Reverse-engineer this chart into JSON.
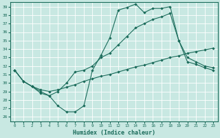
{
  "xlabel": "Humidex (Indice chaleur)",
  "bg_color": "#c8e8e2",
  "grid_color": "#b0d8d0",
  "line_color": "#1a6b5a",
  "xlim": [
    -0.5,
    23.5
  ],
  "ylim": [
    25.5,
    39.5
  ],
  "xticks": [
    0,
    1,
    2,
    3,
    4,
    5,
    6,
    7,
    8,
    9,
    10,
    11,
    12,
    13,
    14,
    15,
    16,
    17,
    18,
    19,
    20,
    21,
    22,
    23
  ],
  "yticks": [
    26,
    27,
    28,
    29,
    30,
    31,
    32,
    33,
    34,
    35,
    36,
    37,
    38,
    39
  ],
  "line1_x": [
    0,
    1,
    2,
    3,
    4,
    5,
    6,
    7,
    8,
    9,
    10,
    11,
    12,
    13,
    14,
    15,
    16,
    17,
    18,
    19,
    20,
    21,
    22,
    23
  ],
  "line1_y": [
    31.5,
    30.2,
    29.6,
    29.0,
    28.5,
    27.3,
    26.6,
    26.6,
    27.3,
    31.5,
    33.3,
    35.3,
    38.6,
    38.9,
    39.3,
    38.3,
    38.8,
    38.8,
    39.0,
    35.0,
    32.5,
    32.2,
    31.8,
    31.5
  ],
  "line2_x": [
    0,
    1,
    2,
    3,
    4,
    5,
    6,
    7,
    8,
    9,
    10,
    11,
    12,
    13,
    14,
    15,
    16,
    17,
    18,
    19,
    20,
    21,
    22,
    23
  ],
  "line2_y": [
    31.5,
    30.2,
    29.6,
    28.8,
    28.5,
    29.0,
    30.0,
    31.3,
    31.5,
    32.0,
    33.0,
    33.5,
    34.5,
    35.5,
    36.5,
    37.0,
    37.5,
    37.8,
    38.2,
    35.0,
    33.0,
    32.5,
    32.0,
    31.8
  ],
  "line3_x": [
    0,
    1,
    2,
    3,
    4,
    5,
    6,
    7,
    8,
    9,
    10,
    11,
    12,
    13,
    14,
    15,
    16,
    17,
    18,
    19,
    20,
    21,
    22,
    23
  ],
  "line3_y": [
    31.5,
    30.2,
    29.6,
    29.2,
    29.0,
    29.2,
    29.5,
    29.8,
    30.2,
    30.5,
    30.8,
    31.0,
    31.3,
    31.6,
    31.9,
    32.1,
    32.4,
    32.7,
    33.0,
    33.2,
    33.5,
    33.7,
    33.9,
    34.1
  ]
}
